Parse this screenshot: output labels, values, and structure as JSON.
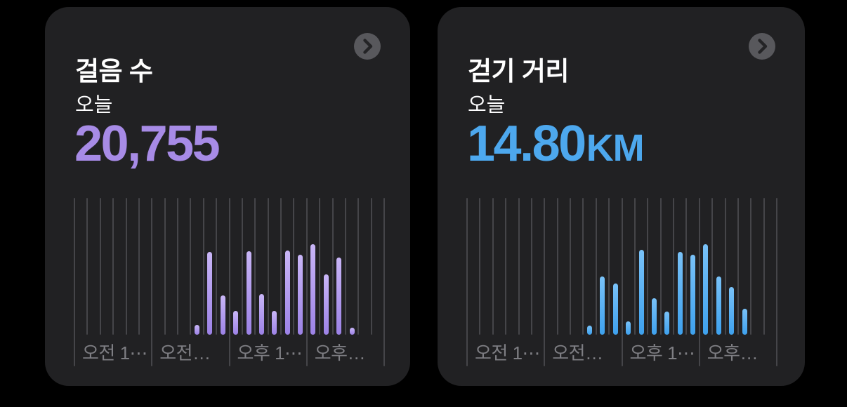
{
  "page": {
    "background_color": "#000000"
  },
  "cards": [
    {
      "title": "걸음 수",
      "period_label": "오늘",
      "value": "20,755",
      "unit": "",
      "accent_color": "#A78BE6",
      "chevron_icon": "chevron-right-in-circle"
    },
    {
      "title": "걷기 거리",
      "period_label": "오늘",
      "value": "14.80",
      "unit": "km",
      "accent_color": "#4DA8EE",
      "chevron_icon": "chevron-right-in-circle"
    }
  ],
  "chevron": {
    "circle_color": "#58585C",
    "glyph_color": "#242426"
  },
  "chart_data": [
    {
      "type": "bar",
      "title": "걸음 수 — 오늘 (시간별)",
      "total": 20755,
      "value_unit": "걸음",
      "values_estimated": true,
      "hours": [
        9,
        10,
        11,
        12,
        13,
        14,
        15,
        16,
        17,
        18,
        19,
        20,
        21
      ],
      "values": [
        290,
        2450,
        1150,
        700,
        2470,
        1200,
        710,
        2490,
        2350,
        2670,
        1780,
        2280,
        215
      ],
      "ylim": [
        0,
        2800
      ],
      "x_axis": {
        "unit": "hour",
        "range": [
          0,
          24
        ],
        "major_ticks_hours": [
          0,
          6,
          12,
          18,
          24
        ],
        "tick_labels": [
          "오전 1⋯",
          "오전…",
          "오후 1⋯",
          "오후…"
        ],
        "grid": true
      },
      "legend": "none",
      "bar_color_top": "#C9B6F7",
      "bar_color_bottom": "#9C82E6",
      "gridline_color": "#454549",
      "tick_label_color": "#7E7E83"
    },
    {
      "type": "bar",
      "title": "걷기 거리 — 오늘 (시간별)",
      "total": 14.8,
      "value_unit": "km",
      "values_estimated": true,
      "hours": [
        9,
        10,
        11,
        12,
        13,
        14,
        15,
        16,
        17,
        18,
        19,
        20,
        21
      ],
      "values": [
        0.21,
        1.3,
        1.15,
        0.3,
        1.89,
        0.82,
        0.52,
        1.85,
        1.79,
        2.02,
        1.3,
        1.07,
        0.58
      ],
      "ylim": [
        0,
        2.1
      ],
      "x_axis": {
        "unit": "hour",
        "range": [
          0,
          24
        ],
        "major_ticks_hours": [
          0,
          6,
          12,
          18,
          24
        ],
        "tick_labels": [
          "오전 1⋯",
          "오전…",
          "오후 1⋯",
          "오후…"
        ],
        "grid": true
      },
      "legend": "none",
      "bar_color_top": "#79C2F8",
      "bar_color_bottom": "#3EA1EE",
      "gridline_color": "#454549",
      "tick_label_color": "#7E7E83"
    }
  ]
}
